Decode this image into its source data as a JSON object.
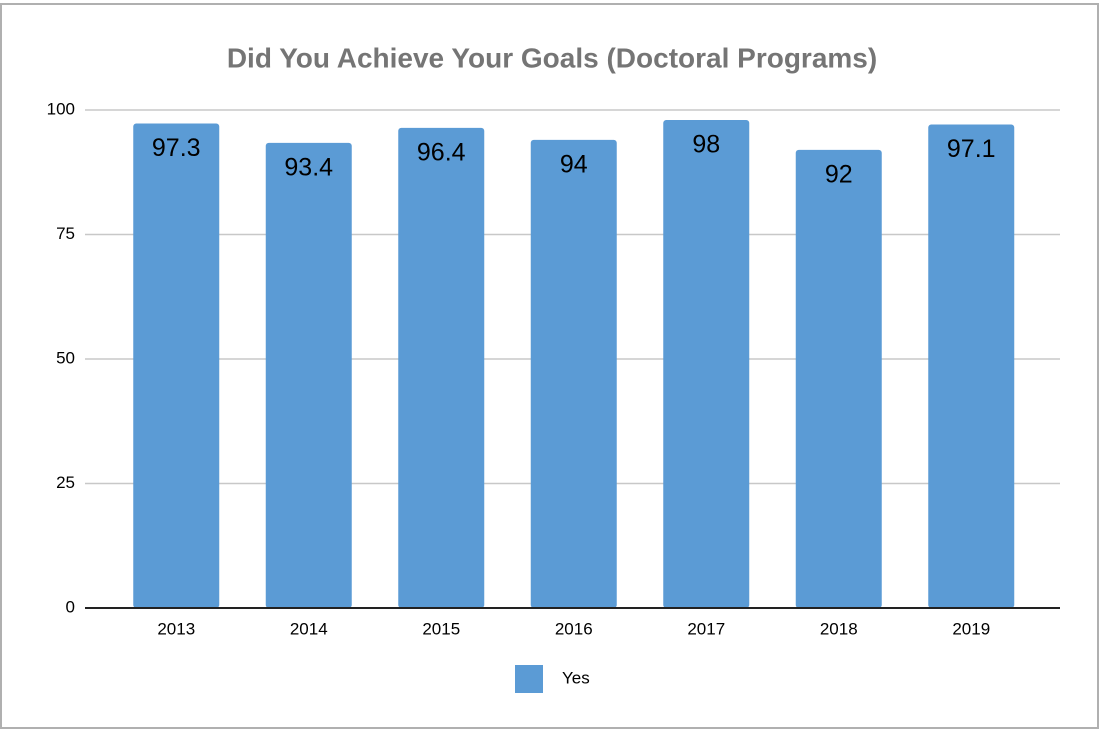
{
  "chart_data": {
    "type": "bar",
    "title": "Did You Achieve Your Goals (Doctoral Programs)",
    "categories": [
      "2013",
      "2014",
      "2015",
      "2016",
      "2017",
      "2018",
      "2019"
    ],
    "series": [
      {
        "name": "Yes",
        "color": "#5b9bd5",
        "values": [
          97.3,
          93.4,
          96.4,
          94,
          98,
          92,
          97.1
        ]
      }
    ],
    "ylim": [
      0,
      100
    ],
    "yticks": [
      0,
      25,
      50,
      75,
      100
    ],
    "grid": true,
    "legend": "bottom"
  }
}
